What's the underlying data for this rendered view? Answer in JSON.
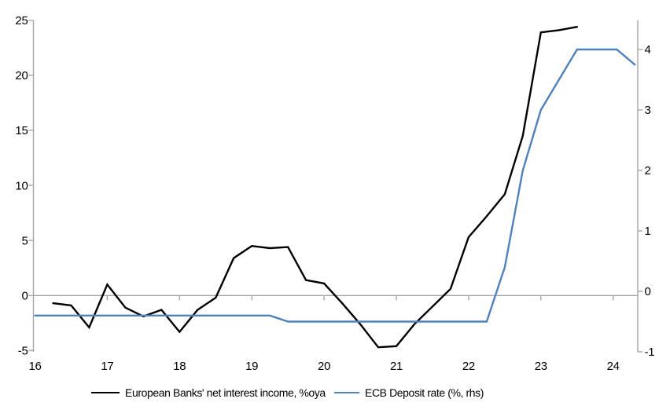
{
  "chart_data": {
    "type": "line",
    "title": "",
    "x_axis": {
      "tick_values": [
        16,
        17,
        18,
        19,
        20,
        21,
        22,
        23,
        24
      ],
      "tick_labels": [
        "16",
        "17",
        "18",
        "19",
        "20",
        "21",
        "22",
        "23",
        "24"
      ],
      "range": [
        16,
        24.33
      ],
      "category_ticks_on_zero_line": true
    },
    "left_axis": {
      "tick_values": [
        25,
        20,
        15,
        10,
        5,
        0,
        -5
      ],
      "range": [
        -5,
        25
      ]
    },
    "right_axis": {
      "tick_values": [
        4,
        3,
        2,
        1,
        0,
        -1
      ],
      "range": [
        -1.05,
        4.5
      ]
    },
    "gridlines": {
      "horizontal_at_left_value": 0
    },
    "legend_position": "bottom",
    "series": [
      {
        "name": "European Banks' net interest income, %oya",
        "axis": "left",
        "color": "#000000",
        "x": [
          16.25,
          16.5,
          16.75,
          17.0,
          17.25,
          17.5,
          17.75,
          18.0,
          18.25,
          18.5,
          18.75,
          19.0,
          19.25,
          19.5,
          19.75,
          20.0,
          20.25,
          20.5,
          20.75,
          21.0,
          21.25,
          21.5,
          21.75,
          22.0,
          22.25,
          22.5,
          22.75,
          23.0,
          23.25,
          23.5
        ],
        "values": [
          -0.7,
          -0.9,
          -2.9,
          1.0,
          -1.1,
          -1.9,
          -1.3,
          -3.3,
          -1.3,
          -0.2,
          3.4,
          4.5,
          4.3,
          4.4,
          1.4,
          1.1,
          -0.7,
          -2.6,
          -4.7,
          -4.6,
          -2.6,
          -1.0,
          0.6,
          5.3,
          7.2,
          9.2,
          14.5,
          23.9,
          24.1,
          24.4
        ]
      },
      {
        "name": "ECB Deposit rate (%, rhs)",
        "axis": "right",
        "color": "#4f81bd",
        "x": [
          16.0,
          19.25,
          19.5,
          22.25,
          22.5,
          22.75,
          23.0,
          23.25,
          23.5,
          24.05,
          24.3
        ],
        "values": [
          -0.4,
          -0.4,
          -0.5,
          -0.5,
          0.4,
          2.0,
          3.0,
          3.5,
          4.0,
          4.0,
          3.75
        ]
      }
    ],
    "legend": {
      "entries": [
        {
          "label": "European Banks' net interest income, %oya",
          "color": "#000000"
        },
        {
          "label": "ECB Deposit rate (%, rhs)",
          "color": "#4f81bd"
        }
      ]
    }
  },
  "colors": {
    "background": "#ffffff",
    "axis": "#a6a6a6",
    "text": "#000000",
    "series_nii": "#000000",
    "series_ecb": "#4f81bd"
  }
}
